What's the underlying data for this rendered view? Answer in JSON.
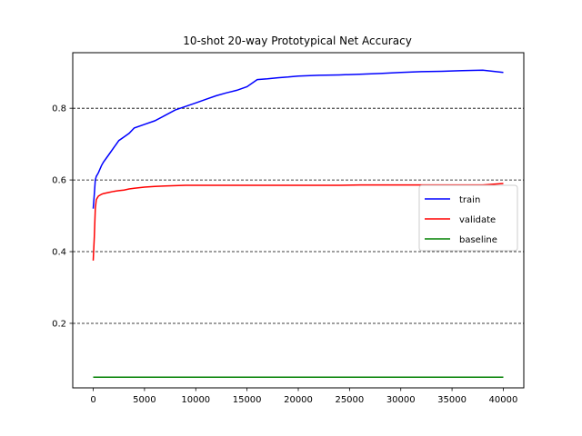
{
  "chart_data": {
    "type": "line",
    "title": "10-shot 20-way Prototypical Net Accuracy",
    "xlabel": "",
    "ylabel": "",
    "xlim": [
      -2000,
      42000
    ],
    "ylim": [
      0.02,
      0.955
    ],
    "x_ticks": [
      0,
      5000,
      10000,
      15000,
      20000,
      25000,
      30000,
      35000,
      40000
    ],
    "x_tick_labels": [
      "0",
      "5000",
      "10000",
      "15000",
      "20000",
      "25000",
      "30000",
      "35000",
      "40000"
    ],
    "y_ticks": [
      0.2,
      0.4,
      0.6,
      0.8
    ],
    "y_tick_labels": [
      "0.2",
      "0.4",
      "0.6",
      "0.8"
    ],
    "grid": "horizontal dashed at y ticks",
    "legend": "center-right",
    "x": [
      0,
      100,
      200,
      300,
      500,
      800,
      1000,
      1500,
      2000,
      2500,
      3000,
      3500,
      4000,
      5000,
      6000,
      7000,
      8000,
      9000,
      10000,
      11000,
      12000,
      13000,
      14000,
      15000,
      16000,
      17000,
      18000,
      19000,
      20000,
      22000,
      24000,
      26000,
      28000,
      30000,
      32000,
      34000,
      36000,
      38000,
      40000
    ],
    "series": [
      {
        "name": "train",
        "color": "#0000ff",
        "values": [
          0.52,
          0.56,
          0.6,
          0.61,
          0.62,
          0.64,
          0.65,
          0.67,
          0.69,
          0.71,
          0.72,
          0.73,
          0.745,
          0.755,
          0.765,
          0.78,
          0.795,
          0.805,
          0.815,
          0.825,
          0.835,
          0.843,
          0.85,
          0.86,
          0.88,
          0.882,
          0.885,
          0.887,
          0.89,
          0.892,
          0.893,
          0.895,
          0.897,
          0.9,
          0.902,
          0.903,
          0.905,
          0.906,
          0.9
        ]
      },
      {
        "name": "validate",
        "color": "#ff0000",
        "values": [
          0.375,
          0.44,
          0.52,
          0.545,
          0.555,
          0.56,
          0.562,
          0.565,
          0.568,
          0.57,
          0.572,
          0.575,
          0.577,
          0.58,
          0.582,
          0.583,
          0.584,
          0.585,
          0.585,
          0.585,
          0.585,
          0.585,
          0.585,
          0.585,
          0.585,
          0.585,
          0.585,
          0.585,
          0.585,
          0.585,
          0.585,
          0.586,
          0.586,
          0.586,
          0.586,
          0.586,
          0.586,
          0.586,
          0.59
        ]
      },
      {
        "name": "baseline",
        "color": "#008000",
        "values": [
          0.05,
          0.05,
          0.05,
          0.05,
          0.05,
          0.05,
          0.05,
          0.05,
          0.05,
          0.05,
          0.05,
          0.05,
          0.05,
          0.05,
          0.05,
          0.05,
          0.05,
          0.05,
          0.05,
          0.05,
          0.05,
          0.05,
          0.05,
          0.05,
          0.05,
          0.05,
          0.05,
          0.05,
          0.05,
          0.05,
          0.05,
          0.05,
          0.05,
          0.05,
          0.05,
          0.05,
          0.05,
          0.05,
          0.05
        ]
      }
    ]
  }
}
